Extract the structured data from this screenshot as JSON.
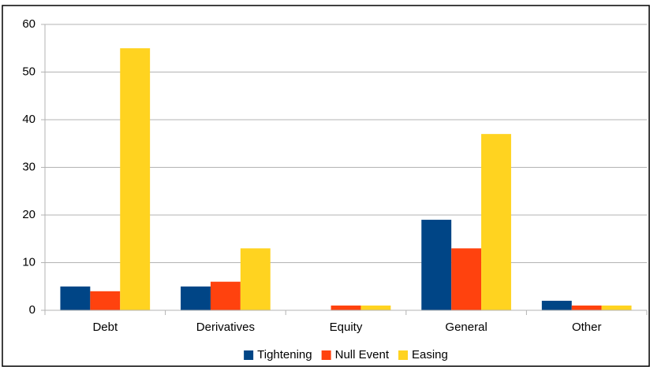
{
  "chart_data": {
    "type": "bar",
    "categories": [
      "Debt",
      "Derivatives",
      "Equity",
      "General",
      "Other"
    ],
    "series": [
      {
        "name": "Tightening",
        "color": "#004586",
        "values": [
          5,
          5,
          0,
          19,
          2
        ]
      },
      {
        "name": "Null Event",
        "color": "#ff420e",
        "values": [
          4,
          6,
          1,
          13,
          1
        ]
      },
      {
        "name": "Easing",
        "color": "#ffd320",
        "values": [
          55,
          13,
          1,
          37,
          1
        ]
      }
    ],
    "ylim": [
      0,
      60
    ],
    "yticks": [
      0,
      10,
      20,
      30,
      40,
      50,
      60
    ],
    "grid": true,
    "legend": "bottom"
  }
}
